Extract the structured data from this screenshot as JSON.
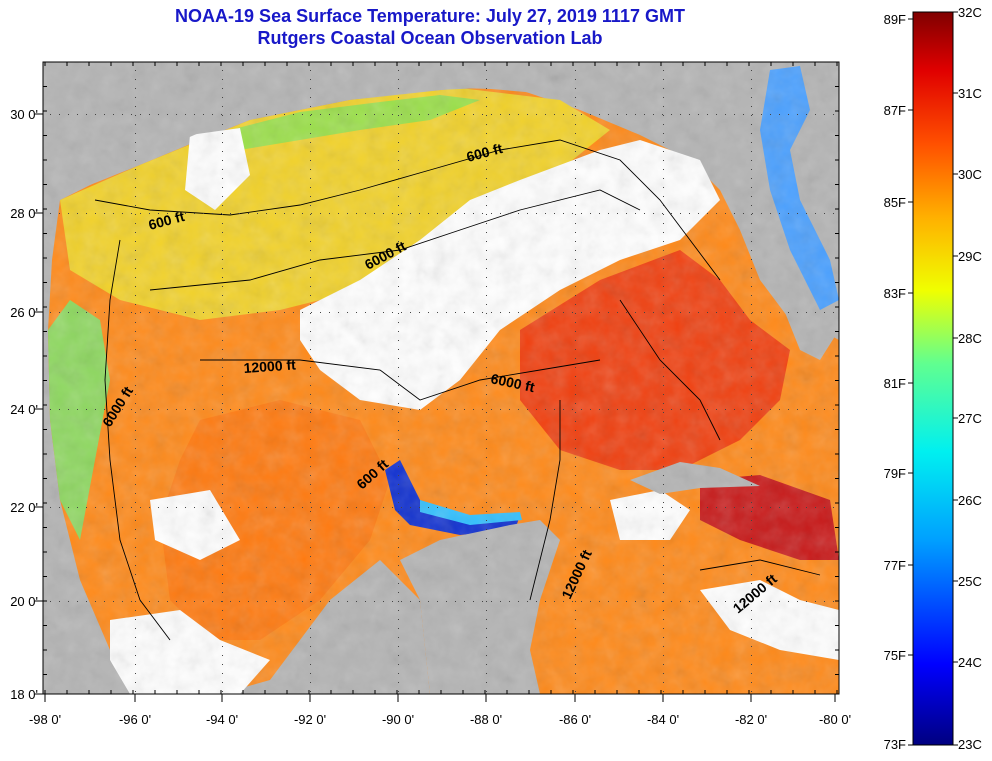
{
  "title_line1": "NOAA-19 Sea Surface Temperature:  July 27, 2019 1117 GMT",
  "title_line2": "Rutgers Coastal Ocean Observation Lab",
  "map": {
    "lon_labels": [
      "-98 0'",
      "-96 0'",
      "-94 0'",
      "-92 0'",
      "-90 0'",
      "-88 0'",
      "-86 0'",
      "-84 0'",
      "-82 0'",
      "-80 0'"
    ],
    "lat_labels": [
      "30 0'",
      "28 0'",
      "26 0'",
      "24 0'",
      "22 0'",
      "20 0'",
      "18 0'"
    ],
    "contour_labels": [
      "600 ft",
      "600 ft",
      "6000 ft",
      "12000 ft",
      "6000 ft",
      "6000 ft",
      "600 ft",
      "12000 ft",
      "12000 ft"
    ]
  },
  "colorbar": {
    "fahrenheit": [
      "89F",
      "87F",
      "85F",
      "83F",
      "81F",
      "79F",
      "77F",
      "75F",
      "73F"
    ],
    "celsius": [
      "32C",
      "31C",
      "30C",
      "29C",
      "28C",
      "27C",
      "26C",
      "25C",
      "24C",
      "23C"
    ]
  },
  "colors": {
    "land": "#b4b4b4",
    "cloud": "#ffffff",
    "title": "#1818c8"
  }
}
